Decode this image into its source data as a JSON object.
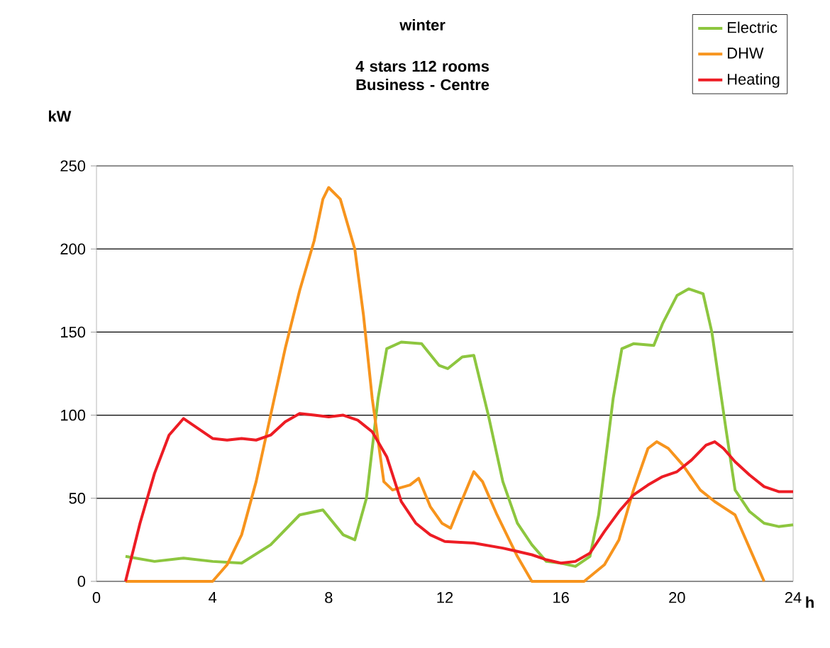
{
  "chart_data": {
    "type": "line",
    "title": "winter",
    "subtitle": "4 stars 112 rooms Business - Centre",
    "xlabel": "h",
    "ylabel": "kW",
    "xlim": [
      0,
      24
    ],
    "ylim": [
      0,
      250
    ],
    "xticks": [
      0,
      4,
      8,
      12,
      16,
      20,
      24
    ],
    "yticks": [
      0,
      50,
      100,
      150,
      200,
      250
    ],
    "grid": "y",
    "legend": "top right",
    "marker": "none",
    "line_style": "solid",
    "series": [
      {
        "name": "Electric",
        "color": "#8dc63f",
        "x": [
          1,
          2,
          3,
          4,
          5,
          6,
          7,
          7.8,
          8.5,
          8.9,
          9.3,
          9.7,
          10,
          10.5,
          11.2,
          11.8,
          12.1,
          12.6,
          13,
          13.5,
          14,
          14.5,
          15,
          15.5,
          16,
          16.5,
          17,
          17.3,
          17.8,
          18.1,
          18.5,
          19.2,
          19.5,
          20,
          20.4,
          20.9,
          21.2,
          21.7,
          22,
          22.5,
          23,
          23.5,
          24
        ],
        "values": [
          15,
          12,
          14,
          12,
          11,
          22,
          40,
          43,
          28,
          25,
          50,
          110,
          140,
          144,
          143,
          130,
          128,
          135,
          136,
          100,
          60,
          35,
          22,
          12,
          11,
          9,
          15,
          40,
          110,
          140,
          143,
          142,
          155,
          172,
          176,
          173,
          150,
          90,
          55,
          42,
          35,
          33,
          34
        ]
      },
      {
        "name": "DHW",
        "color": "#f7941d",
        "x": [
          1,
          3,
          4,
          4.5,
          5,
          5.5,
          6,
          6.5,
          7,
          7.5,
          7.8,
          8,
          8.4,
          8.9,
          9.2,
          9.5,
          9.9,
          10.2,
          10.8,
          11.1,
          11.5,
          11.9,
          12.2,
          12.5,
          13,
          13.3,
          13.8,
          14.5,
          15,
          16,
          16.8,
          17.5,
          18,
          18.5,
          19,
          19.3,
          19.7,
          20.2,
          20.8,
          21.3,
          22,
          22.5,
          23
        ],
        "values": [
          0,
          0,
          0,
          10,
          28,
          60,
          100,
          140,
          175,
          205,
          230,
          237,
          230,
          200,
          160,
          110,
          60,
          55,
          58,
          62,
          45,
          35,
          32,
          45,
          66,
          60,
          40,
          15,
          0,
          0,
          0,
          10,
          25,
          55,
          80,
          84,
          80,
          70,
          55,
          48,
          40,
          20,
          0
        ]
      },
      {
        "name": "Heating",
        "color": "#ed1c24",
        "x": [
          1,
          1.5,
          2,
          2.5,
          3,
          3.5,
          4,
          4.5,
          5,
          5.5,
          6,
          6.5,
          7,
          7.5,
          8,
          8.5,
          9,
          9.5,
          10,
          10.5,
          11,
          11.5,
          12,
          13,
          14,
          14.5,
          15,
          15.5,
          16,
          16.5,
          17,
          17.5,
          18,
          18.5,
          19,
          19.5,
          20,
          20.5,
          21,
          21.3,
          21.6,
          22,
          22.5,
          23,
          23.5,
          24
        ],
        "values": [
          0,
          35,
          65,
          88,
          98,
          92,
          86,
          85,
          86,
          85,
          88,
          96,
          101,
          100,
          99,
          100,
          97,
          90,
          75,
          48,
          35,
          28,
          24,
          23,
          20,
          18,
          16,
          13,
          11,
          12,
          17,
          30,
          42,
          52,
          58,
          63,
          66,
          73,
          82,
          84,
          80,
          72,
          64,
          57,
          54,
          54
        ]
      }
    ]
  }
}
